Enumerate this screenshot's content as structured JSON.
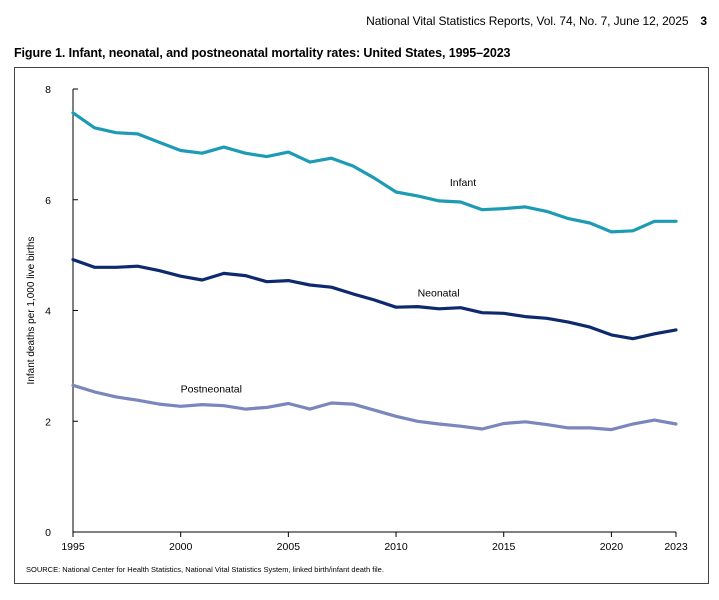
{
  "header": {
    "report": "National Vital Statistics Reports, Vol. 74, No. 7, June 12, 2025",
    "page": "3"
  },
  "figure": {
    "title": "Figure 1. Infant, neonatal, and postneonatal mortality rates: United States, 1995–2023",
    "source": "SOURCE: National Center for Health Statistics, National Vital Statistics System, linked birth/infant death file."
  },
  "colors": {
    "infant": "#1e9bb4",
    "neonatal": "#0e2a6e",
    "postneonatal": "#7a86bd"
  },
  "chart_data": {
    "type": "line",
    "title": "Infant, neonatal, and postneonatal mortality rates: United States, 1995–2023",
    "xlabel": "",
    "ylabel": "Infant deaths per 1,000 live births",
    "xlim": [
      1995,
      2023
    ],
    "ylim": [
      0,
      8
    ],
    "xticks": [
      1995,
      2000,
      2005,
      2010,
      2015,
      2020,
      2023
    ],
    "yticks": [
      0,
      2,
      4,
      6,
      8
    ],
    "x": [
      1995,
      1996,
      1997,
      1998,
      1999,
      2000,
      2001,
      2002,
      2003,
      2004,
      2005,
      2006,
      2007,
      2008,
      2009,
      2010,
      2011,
      2012,
      2013,
      2014,
      2015,
      2016,
      2017,
      2018,
      2019,
      2020,
      2021,
      2022,
      2023
    ],
    "series": [
      {
        "name": "Infant",
        "label_year": 2012.5,
        "label_value": 6.25,
        "values": [
          7.57,
          7.3,
          7.21,
          7.19,
          7.04,
          6.89,
          6.84,
          6.95,
          6.84,
          6.78,
          6.86,
          6.68,
          6.75,
          6.61,
          6.39,
          6.14,
          6.07,
          5.98,
          5.96,
          5.82,
          5.84,
          5.87,
          5.79,
          5.66,
          5.58,
          5.42,
          5.44,
          5.61,
          5.61
        ]
      },
      {
        "name": "Neonatal",
        "label_year": 2011,
        "label_value": 4.25,
        "values": [
          4.92,
          4.78,
          4.78,
          4.8,
          4.72,
          4.62,
          4.55,
          4.67,
          4.63,
          4.52,
          4.54,
          4.46,
          4.42,
          4.3,
          4.19,
          4.06,
          4.07,
          4.03,
          4.05,
          3.96,
          3.95,
          3.89,
          3.86,
          3.79,
          3.7,
          3.56,
          3.49,
          3.58,
          3.65
        ]
      },
      {
        "name": "Postneonatal",
        "label_year": 2000,
        "label_value": 2.52,
        "values": [
          2.65,
          2.53,
          2.44,
          2.38,
          2.31,
          2.27,
          2.3,
          2.28,
          2.22,
          2.25,
          2.32,
          2.22,
          2.33,
          2.31,
          2.2,
          2.09,
          2.0,
          1.95,
          1.91,
          1.86,
          1.96,
          1.99,
          1.94,
          1.88,
          1.88,
          1.85,
          1.95,
          2.02,
          1.95
        ]
      }
    ],
    "legend": "none",
    "grid": false
  }
}
